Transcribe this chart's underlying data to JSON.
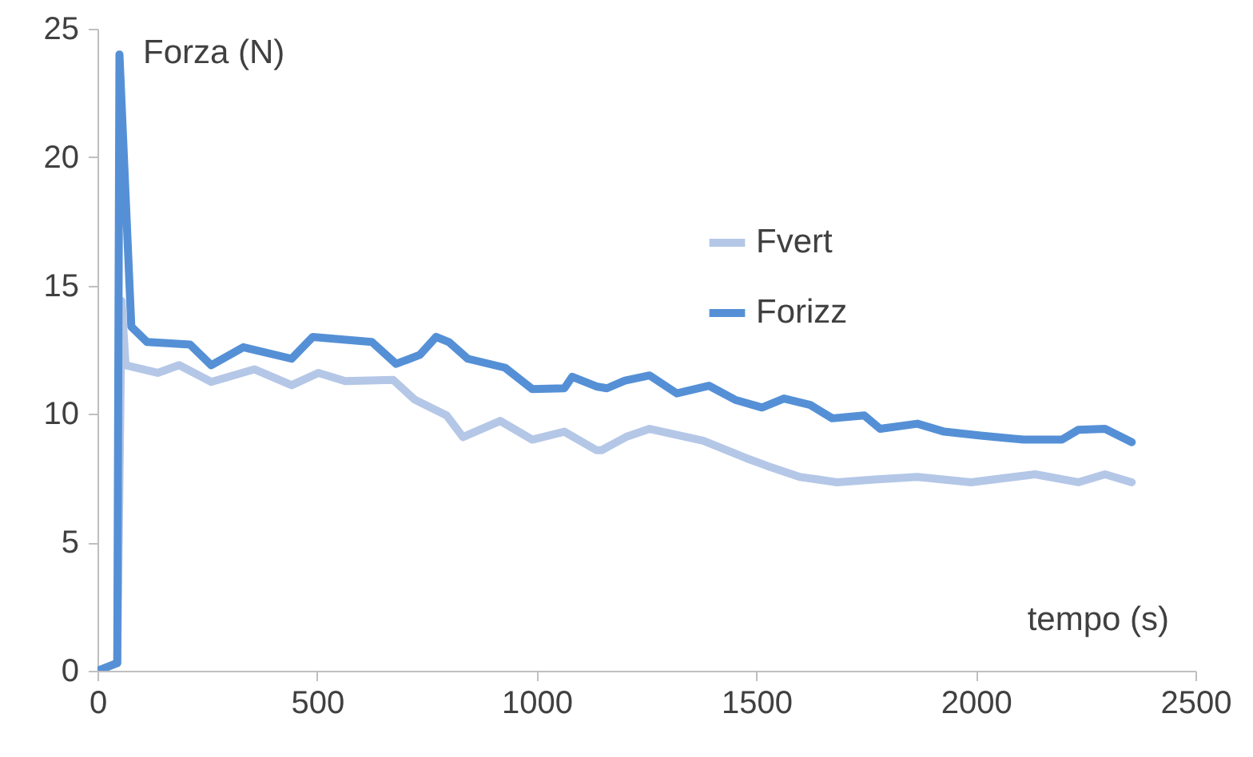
{
  "chart_data": {
    "type": "line",
    "xlabel": "tempo (s)",
    "ylabel": "Forza (N)",
    "xlim": [
      0,
      2500
    ],
    "xticks": [
      0,
      500,
      1000,
      1500,
      2000,
      2500
    ],
    "ylim": [
      0,
      25
    ],
    "yticks": [
      0,
      5,
      10,
      15,
      20,
      25
    ],
    "grid": false,
    "legend": "right",
    "marker": "none",
    "line_style": "solid",
    "series": [
      {
        "name": "Fvert",
        "color": "#b4c7e7",
        "x": [
          0,
          45,
          55,
          64,
          137,
          186,
          259,
          357,
          442,
          503,
          564,
          673,
          722,
          795,
          832,
          917,
          990,
          1063,
          1136,
          1148,
          1203,
          1257,
          1379,
          1477,
          1526,
          1599,
          1684,
          1769,
          1867,
          1989,
          2135,
          2233,
          2294,
          2355
        ],
        "values": [
          0,
          0.3,
          14.4,
          11.9,
          11.6,
          11.9,
          11.25,
          11.74,
          11.12,
          11.6,
          11.28,
          11.33,
          10.56,
          9.94,
          9.1,
          9.73,
          9.0,
          9.31,
          8.59,
          8.59,
          9.1,
          9.42,
          8.96,
          8.28,
          7.97,
          7.55,
          7.34,
          7.45,
          7.55,
          7.34,
          7.65,
          7.34,
          7.65,
          7.34
        ]
      },
      {
        "name": "Forizz",
        "color": "#5590d6",
        "x": [
          0,
          45,
          50,
          77,
          113,
          211,
          259,
          332,
          442,
          490,
          625,
          680,
          734,
          771,
          800,
          843,
          928,
          990,
          1063,
          1081,
          1136,
          1160,
          1201,
          1257,
          1319,
          1392,
          1452,
          1513,
          1563,
          1623,
          1673,
          1746,
          1782,
          1867,
          1928,
          2011,
          2109,
          2196,
          2233,
          2294,
          2355
        ],
        "values": [
          0,
          0.3,
          24.0,
          13.4,
          12.8,
          12.7,
          11.9,
          12.6,
          12.15,
          13.0,
          12.8,
          11.95,
          12.3,
          13.0,
          12.8,
          12.15,
          11.8,
          10.97,
          11.0,
          11.45,
          11.07,
          11.0,
          11.3,
          11.5,
          10.8,
          11.1,
          10.55,
          10.25,
          10.6,
          10.35,
          9.83,
          9.94,
          9.42,
          9.62,
          9.31,
          9.16,
          9.0,
          9.0,
          9.38,
          9.42,
          8.9
        ]
      }
    ]
  }
}
